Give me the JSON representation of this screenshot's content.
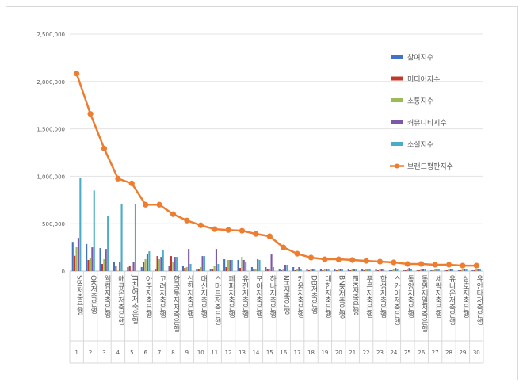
{
  "chart_data": {
    "type": "bar+line",
    "title": "",
    "xlabel": "",
    "ylabel": "",
    "ylim": [
      0,
      2500000
    ],
    "yticks": [
      "0",
      "500,000",
      "1,000,000",
      "1,500,000",
      "2,000,000",
      "2,500,000"
    ],
    "ytick_values": [
      0,
      500000,
      1000000,
      1500000,
      2000000,
      2500000
    ],
    "grid": true,
    "legend_position": "right",
    "ranks": [
      "1",
      "2",
      "3",
      "4",
      "5",
      "6",
      "7",
      "8",
      "9",
      "10",
      "11",
      "12",
      "13",
      "14",
      "15",
      "16",
      "17",
      "18",
      "19",
      "20",
      "21",
      "22",
      "23",
      "24",
      "25",
      "26",
      "27",
      "28",
      "29",
      "30"
    ],
    "categories": [
      "SBI저축은행",
      "OK저축은행",
      "웰컴저축은행",
      "애큐온저축은행",
      "JT친애저축은행",
      "아주저축은행",
      "고려저축은행",
      "한국투자저축은행",
      "신한저축은행",
      "대신저축은행",
      "스마트저축은행",
      "페퍼저축은행",
      "유진저축은행",
      "모아저축은행",
      "하나저축은행",
      "NH저축은행",
      "키움저축은행",
      "DB저축은행",
      "대한저축은행",
      "BNK저축은행",
      "IBK저축은행",
      "푸른저축은행",
      "한성저축은행",
      "스카이저축은행",
      "동양저축은행",
      "동원제일저축은행",
      "세람저축은행",
      "유니온저축은행",
      "삼호저축은행",
      "유안타저축은행"
    ],
    "series": [
      {
        "name": "참여지수",
        "type": "bar",
        "color": "#4472c4",
        "values": [
          308000,
          286000,
          242000,
          92000,
          42000,
          42000,
          17000,
          58000,
          58000,
          17000,
          17000,
          125000,
          117000,
          42000,
          42000,
          17000,
          42000,
          17000,
          17000,
          25000,
          17000,
          17000,
          17000,
          8000,
          8000,
          8000,
          8000,
          8000,
          8000,
          8000
        ]
      },
      {
        "name": "미디어지수",
        "type": "bar",
        "color": "#c0392b",
        "values": [
          161000,
          117000,
          75000,
          53000,
          50000,
          100000,
          158000,
          158000,
          33000,
          17000,
          17000,
          42000,
          33000,
          17000,
          17000,
          8000,
          8000,
          8000,
          8000,
          8000,
          8000,
          8000,
          8000,
          8000,
          8000,
          8000,
          8000,
          8000,
          8000,
          8000
        ]
      },
      {
        "name": "소통지수",
        "type": "bar",
        "color": "#9bbb59",
        "values": [
          253000,
          136000,
          125000,
          5000,
          5000,
          125000,
          125000,
          100000,
          42000,
          42000,
          58000,
          117000,
          150000,
          25000,
          25000,
          25000,
          17000,
          17000,
          17000,
          17000,
          17000,
          17000,
          17000,
          17000,
          17000,
          17000,
          17000,
          17000,
          17000,
          17000
        ]
      },
      {
        "name": "커뮤니티지수",
        "type": "bar",
        "color": "#7e57a8",
        "values": [
          350000,
          250000,
          233000,
          92000,
          92000,
          183000,
          150000,
          150000,
          233000,
          158000,
          233000,
          117000,
          117000,
          125000,
          175000,
          67000,
          42000,
          25000,
          25000,
          25000,
          25000,
          25000,
          25000,
          33000,
          33000,
          25000,
          25000,
          25000,
          25000,
          25000
        ]
      },
      {
        "name": "소셜지수",
        "type": "bar",
        "color": "#4bacc6",
        "values": [
          983000,
          850000,
          583000,
          708000,
          708000,
          208000,
          217000,
          150000,
          75000,
          158000,
          75000,
          117000,
          100000,
          117000,
          42000,
          67000,
          25000,
          25000,
          25000,
          25000,
          25000,
          25000,
          25000,
          17000,
          17000,
          17000,
          17000,
          17000,
          17000,
          25000
        ]
      },
      {
        "name": "브랜드평판지수",
        "type": "line",
        "color": "#ed7d31",
        "values": [
          2083000,
          1658000,
          1292000,
          975000,
          925000,
          700000,
          700000,
          600000,
          533000,
          483000,
          442000,
          433000,
          425000,
          392000,
          367000,
          250000,
          183000,
          142000,
          125000,
          125000,
          117000,
          108000,
          100000,
          92000,
          75000,
          75000,
          67000,
          67000,
          58000,
          58000
        ]
      }
    ]
  }
}
